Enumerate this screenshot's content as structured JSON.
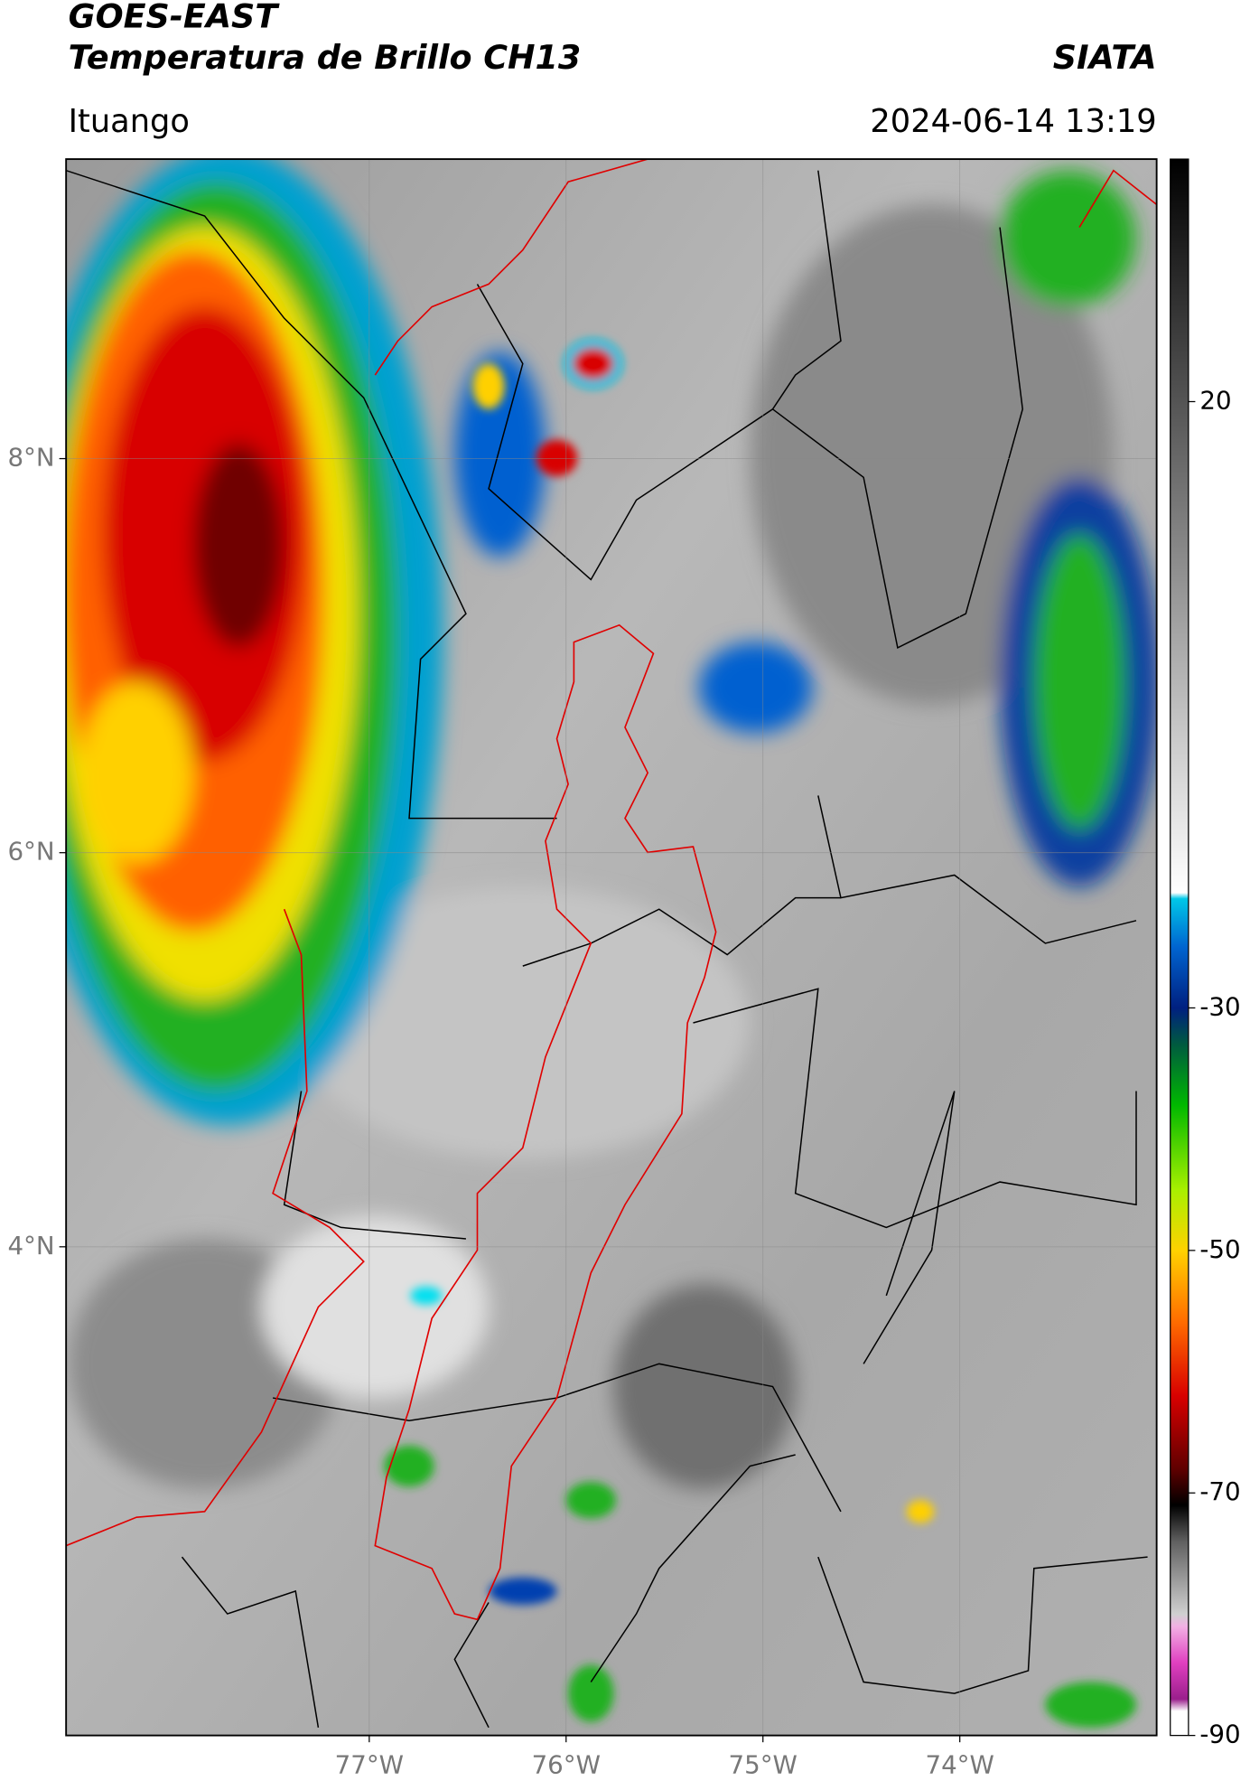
{
  "header": {
    "title": "GOES-EAST",
    "subtitle": "Temperatura de Brillo CH13",
    "agency": "SIATA",
    "location": "Ituango",
    "timestamp": "2024-06-14 13:19"
  },
  "map": {
    "xlim": [
      -78.54,
      -73.0
    ],
    "ylim": [
      1.52,
      9.52
    ],
    "xticks": [
      {
        "value": -77,
        "label": "77°W"
      },
      {
        "value": -76,
        "label": "76°W"
      },
      {
        "value": -75,
        "label": "75°W"
      },
      {
        "value": -74,
        "label": "74°W"
      }
    ],
    "yticks": [
      {
        "value": 8,
        "label": "8°N"
      },
      {
        "value": 6,
        "label": "6°N"
      },
      {
        "value": 4,
        "label": "4°N"
      }
    ],
    "grid": true
  },
  "colorbar": {
    "lim": [
      -90,
      40
    ],
    "ticks": [
      20,
      -30,
      -50,
      -70,
      -90
    ],
    "colormap": [
      {
        "value": -90,
        "color": "#ffffff"
      },
      {
        "value": -88,
        "color": "#ffffff"
      },
      {
        "value": -87,
        "color": "#9a1f8c"
      },
      {
        "value": -84,
        "color": "#e040c0"
      },
      {
        "value": -81,
        "color": "#f2b0e4"
      },
      {
        "value": -80,
        "color": "#d0d0d0"
      },
      {
        "value": -74,
        "color": "#606060"
      },
      {
        "value": -71,
        "color": "#000000"
      },
      {
        "value": -68,
        "color": "#600000"
      },
      {
        "value": -62,
        "color": "#d80000"
      },
      {
        "value": -56,
        "color": "#ff6a00"
      },
      {
        "value": -50,
        "color": "#ffd200"
      },
      {
        "value": -45,
        "color": "#a8f000"
      },
      {
        "value": -38,
        "color": "#00b800"
      },
      {
        "value": -33,
        "color": "#005a40"
      },
      {
        "value": -30,
        "color": "#002080"
      },
      {
        "value": -25,
        "color": "#0064d0"
      },
      {
        "value": -21,
        "color": "#00c8e8"
      },
      {
        "value": -20.5,
        "color": "#ffffff"
      },
      {
        "value": 40,
        "color": "#000000"
      }
    ]
  }
}
